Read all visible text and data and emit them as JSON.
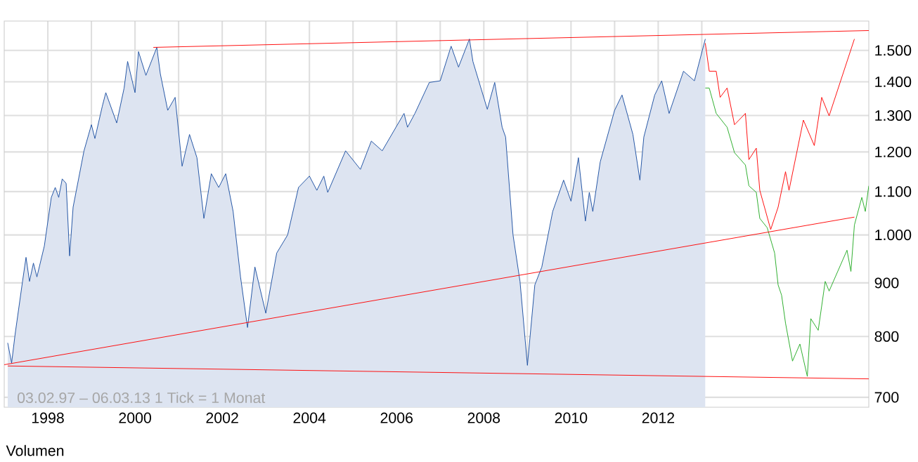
{
  "chart_data": {
    "type": "line",
    "log": "y",
    "grid": true,
    "xlim": [
      "1997-01",
      "2016-11"
    ],
    "ylim": [
      685,
      1600
    ],
    "xticks": [
      {
        "value": "1998",
        "label": "1998"
      },
      {
        "value": "1999",
        "label": null
      },
      {
        "value": "2000",
        "label": "2000"
      },
      {
        "value": "2001",
        "label": null
      },
      {
        "value": "2002",
        "label": "2002"
      },
      {
        "value": "2003",
        "label": null
      },
      {
        "value": "2004",
        "label": "2004"
      },
      {
        "value": "2005",
        "label": null
      },
      {
        "value": "2006",
        "label": "2006"
      },
      {
        "value": "2007",
        "label": null
      },
      {
        "value": "2008",
        "label": "2008"
      },
      {
        "value": "2009",
        "label": null
      },
      {
        "value": "2010",
        "label": "2010"
      },
      {
        "value": "2011",
        "label": null
      },
      {
        "value": "2012",
        "label": "2012"
      },
      {
        "value": "2013",
        "label": null
      }
    ],
    "yticks": [
      {
        "value": 700,
        "label": "700"
      },
      {
        "value": 800,
        "label": "800"
      },
      {
        "value": 900,
        "label": "900"
      },
      {
        "value": 1000,
        "label": "1.000"
      },
      {
        "value": 1100,
        "label": "1.100"
      },
      {
        "value": 1200,
        "label": "1.200"
      },
      {
        "value": 1300,
        "label": "1.300"
      },
      {
        "value": 1400,
        "label": "1.400"
      },
      {
        "value": 1500,
        "label": "1.500"
      }
    ],
    "annotations": [
      "03.02.97 – 06.03.13   1 Tick = 1 Monat",
      "Volumen"
    ],
    "series": [
      {
        "type": "area",
        "color": "#1a4da0",
        "x": [
          "1997-02",
          "1997-03",
          "1997-04",
          "1997-06",
          "1997-07",
          "1997-08",
          "1997-09",
          "1997-10",
          "1997-12",
          "1998-02",
          "1998-03",
          "1998-04",
          "1998-05",
          "1998-06",
          "1998-07",
          "1998-08",
          "1998-11",
          "1999-01",
          "1999-02",
          "1999-04",
          "1999-05",
          "1999-08",
          "1999-10",
          "1999-11",
          "2000-01",
          "2000-02",
          "2000-04",
          "2000-07",
          "2000-08",
          "2000-10",
          "2000-12",
          "2001-02",
          "2001-04",
          "2001-06",
          "2001-08",
          "2001-10",
          "2001-12",
          "2002-02",
          "2002-04",
          "2002-06",
          "2002-08",
          "2002-10",
          "2003-01",
          "2003-04",
          "2003-07",
          "2003-10",
          "2004-01",
          "2004-03",
          "2004-05",
          "2004-06",
          "2004-11",
          "2005-03",
          "2005-06",
          "2005-09",
          "2006-03",
          "2006-04",
          "2006-06",
          "2006-10",
          "2007-01",
          "2007-04",
          "2007-06",
          "2007-09",
          "2007-10",
          "2008-02",
          "2008-04",
          "2008-06",
          "2008-07",
          "2008-09",
          "2008-11",
          "2009-01",
          "2009-03",
          "2009-05",
          "2009-08",
          "2009-11",
          "2010-01",
          "2010-03",
          "2010-05",
          "2010-06",
          "2010-07",
          "2010-09",
          "2011-01",
          "2011-03",
          "2011-06",
          "2011-08",
          "2011-09",
          "2011-12",
          "2012-02",
          "2012-04",
          "2012-08",
          "2012-11",
          "2013-02"
        ],
        "values": [
          789,
          755,
          804,
          903,
          952,
          903,
          940,
          912,
          976,
          1086,
          1110,
          1086,
          1131,
          1120,
          955,
          1063,
          1203,
          1274,
          1236,
          1327,
          1367,
          1279,
          1381,
          1464,
          1367,
          1496,
          1420,
          1510,
          1425,
          1315,
          1353,
          1163,
          1247,
          1185,
          1037,
          1144,
          1110,
          1144,
          1053,
          912,
          816,
          932,
          842,
          961,
          1000,
          1110,
          1138,
          1103,
          1138,
          1098,
          1203,
          1155,
          1229,
          1203,
          1306,
          1267,
          1306,
          1398,
          1403,
          1514,
          1446,
          1538,
          1464,
          1318,
          1398,
          1267,
          1240,
          1000,
          903,
          751,
          896,
          932,
          1053,
          1128,
          1077,
          1185,
          1031,
          1098,
          1053,
          1174,
          1315,
          1360,
          1247,
          1128,
          1240,
          1360,
          1403,
          1306,
          1433,
          1403,
          1538
        ]
      },
      {
        "color": "#ff0000",
        "x": [
          "2013-02",
          "2013-03",
          "2013-05",
          "2013-06",
          "2013-08",
          "2013-10",
          "2014-01",
          "2014-02",
          "2014-04",
          "2014-05",
          "2014-08",
          "2014-10",
          "2014-12",
          "2015-01",
          "2015-05",
          "2015-08",
          "2015-10",
          "2015-12",
          "2016-07"
        ],
        "values": [
          1524,
          1433,
          1433,
          1353,
          1381,
          1274,
          1306,
          1180,
          1210,
          1103,
          1012,
          1063,
          1149,
          1103,
          1287,
          1217,
          1353,
          1299,
          1538
        ]
      },
      {
        "color": "#22aa22",
        "x": [
          "2013-02",
          "2013-03",
          "2013-05",
          "2013-08",
          "2013-10",
          "2014-01",
          "2014-02",
          "2014-04",
          "2014-05",
          "2014-07",
          "2014-09",
          "2014-10",
          "2014-11",
          "2014-12",
          "2015-02",
          "2015-04",
          "2015-06",
          "2015-07",
          "2015-09",
          "2015-11",
          "2015-12",
          "2016-05",
          "2016-06",
          "2016-07",
          "2016-09",
          "2016-10",
          "2016-11"
        ],
        "values": [
          1381,
          1381,
          1306,
          1267,
          1198,
          1166,
          1114,
          1098,
          1037,
          1016,
          961,
          896,
          876,
          824,
          758,
          787,
          733,
          832,
          811,
          903,
          884,
          967,
          923,
          1022,
          1086,
          1053,
          1114
        ]
      },
      {
        "color": "#ff0000",
        "x": [
          "2000-06",
          "2016-11"
        ],
        "values": [
          1510,
          1567
        ]
      },
      {
        "color": "#ff0000",
        "x": [
          "1997-01",
          "2016-07"
        ],
        "values": [
          752,
          1040
        ]
      },
      {
        "color": "#ff0000",
        "x": [
          "1997-02",
          "2016-11"
        ],
        "values": [
          750,
          729
        ]
      }
    ]
  }
}
